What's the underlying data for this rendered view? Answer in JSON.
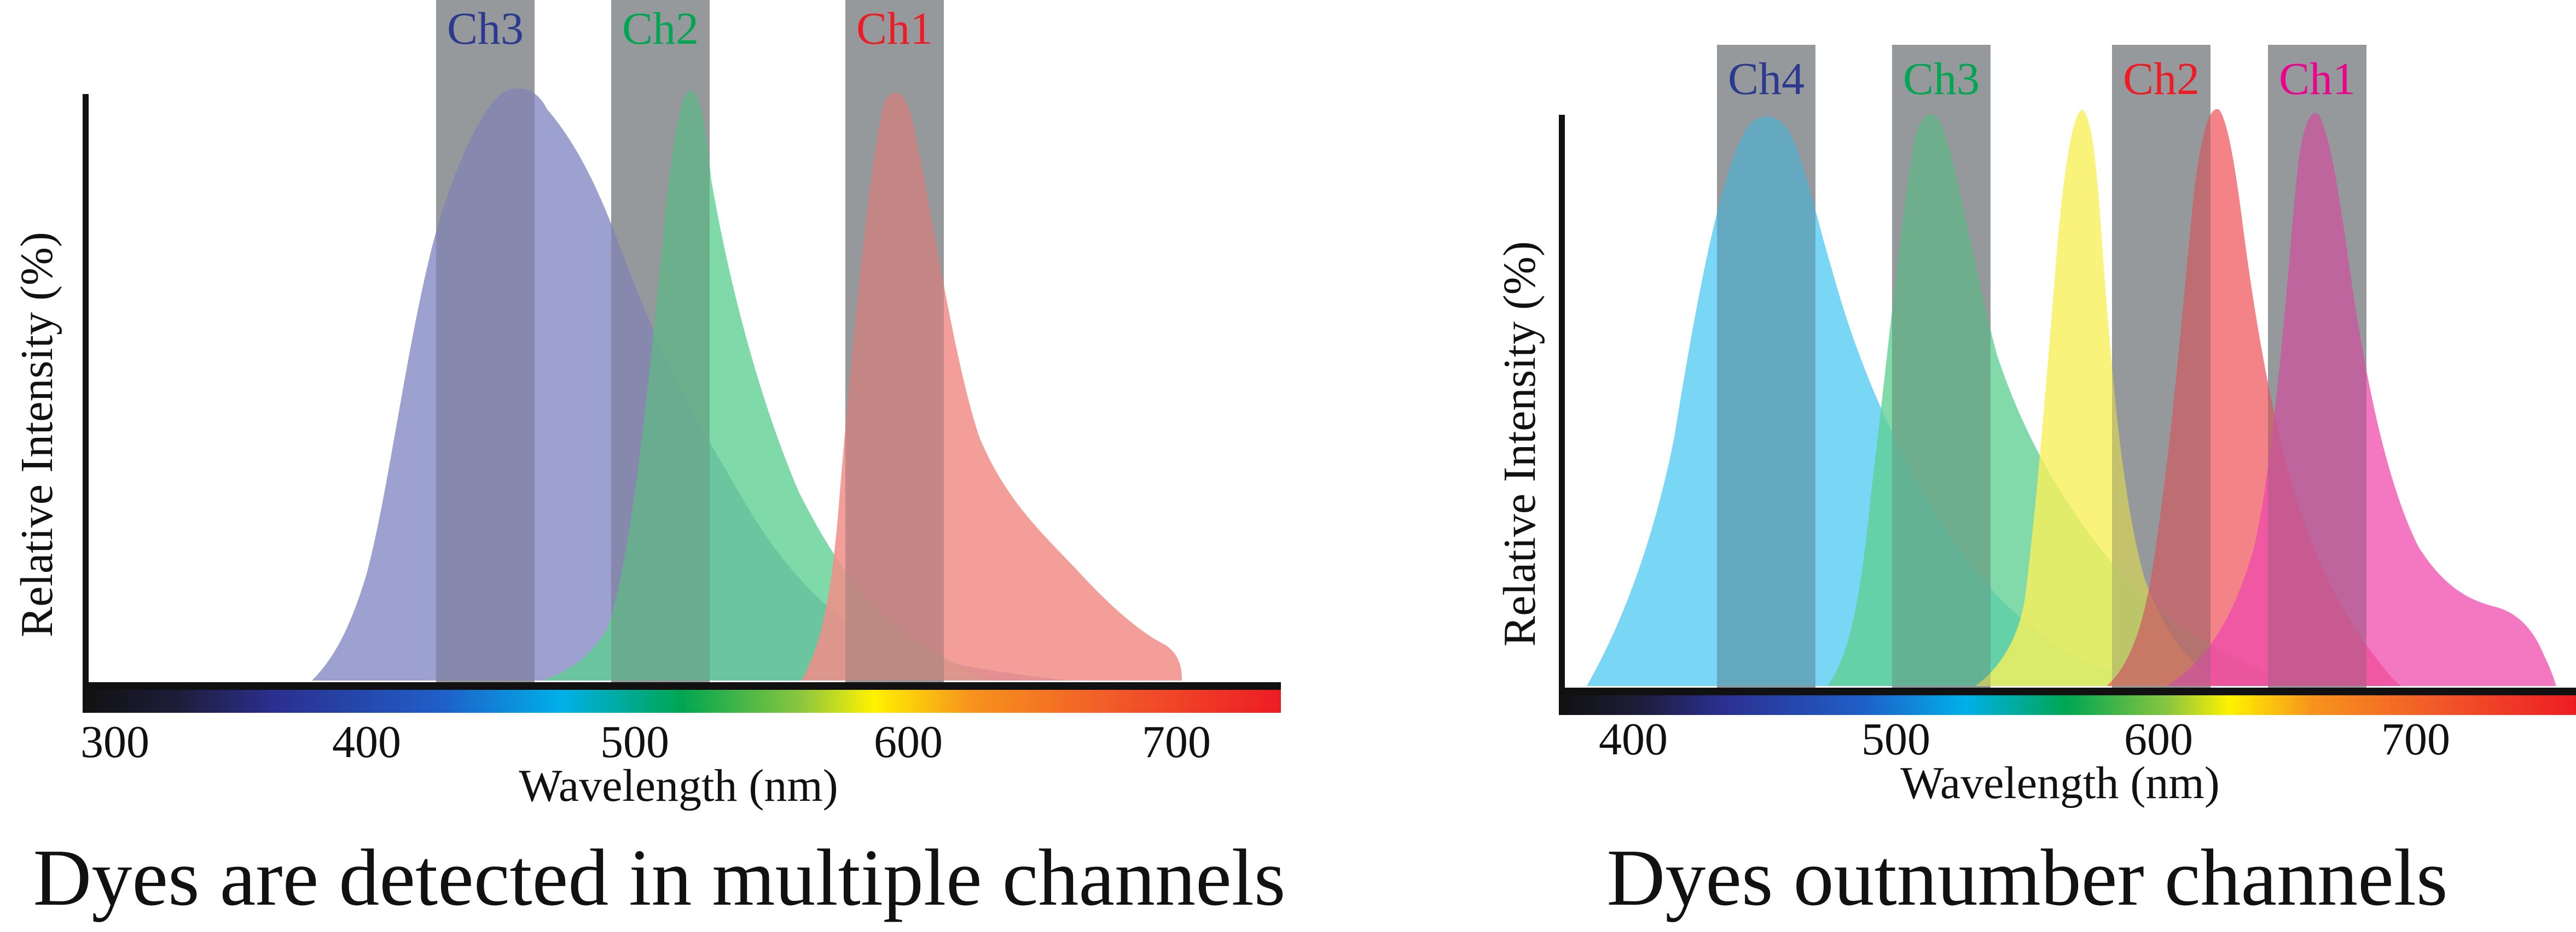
{
  "panels": [
    {
      "caption": "Dyes are detected in multiple channels",
      "ylabel": "Relative Intensity (%)",
      "xlabel": "Wavelength (nm)",
      "xticks": [
        "300",
        "400",
        "500",
        "600",
        "700"
      ],
      "tick_values": [
        300,
        400,
        500,
        600,
        700
      ],
      "xrange": [
        292,
        737
      ],
      "channels": [
        {
          "label": "Ch3",
          "range": [
            425,
            460
          ],
          "color": "#2b3a8e"
        },
        {
          "label": "Ch2",
          "range": [
            489,
            524
          ],
          "color": "#00a651"
        },
        {
          "label": "Ch1",
          "range": [
            573,
            609
          ],
          "color": "#ed1c24"
        }
      ],
      "dyes": [
        {
          "color": "#8c91c8",
          "peak": 455
        },
        {
          "color": "#5fcf92",
          "peak": 516
        },
        {
          "color": "#f18d87",
          "peak": 595
        }
      ]
    },
    {
      "caption": "Dyes outnumber channels",
      "ylabel": "Relative Intensity (%)",
      "xlabel": "Wavelength (nm)",
      "xticks": [
        "400",
        "500",
        "600",
        "700"
      ],
      "tick_values": [
        400,
        500,
        600,
        700
      ],
      "xrange": [
        370,
        766
      ],
      "channels": [
        {
          "label": "Ch4",
          "range": [
            432,
            471
          ],
          "color": "#2b3a8e"
        },
        {
          "label": "Ch3",
          "range": [
            500,
            537
          ],
          "color": "#00a651"
        },
        {
          "label": "Ch2",
          "range": [
            584,
            621
          ],
          "color": "#ed1c24"
        },
        {
          "label": "Ch1",
          "range": [
            645,
            682
          ],
          "color": "#ec008c"
        }
      ],
      "dyes": [
        {
          "color": "#4cc8f2",
          "peak": 453
        },
        {
          "color": "#5fcf92",
          "peak": 512
        },
        {
          "color": "#f8f05a",
          "peak": 569
        },
        {
          "color": "#f05a5f",
          "peak": 619
        },
        {
          "color": "#f049ae",
          "peak": 660
        }
      ]
    }
  ]
}
